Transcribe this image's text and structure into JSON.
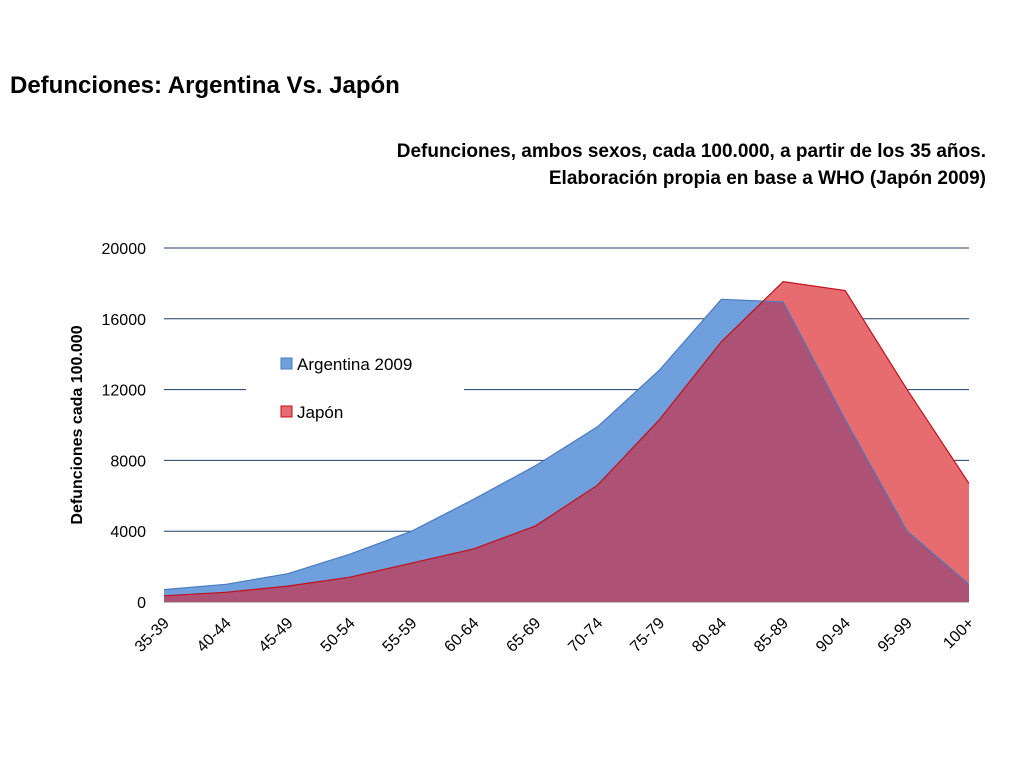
{
  "page": {
    "title": "Defunciones: Argentina Vs. Japón",
    "subtitle_line1": "Defunciones, ambos sexos, cada 100.000, a partir de los 35 años.",
    "subtitle_line2": "Elaboración propia en base a WHO (Japón 2009)"
  },
  "chart_data": {
    "type": "area",
    "categories": [
      "35-39",
      "40-44",
      "45-49",
      "50-54",
      "55-59",
      "60-64",
      "65-69",
      "70-74",
      "75-79",
      "80-84",
      "85-89",
      "90-94",
      "95-99",
      "100+"
    ],
    "series": [
      {
        "name": "Argentina 2009",
        "color": "#6f9fdc",
        "stroke": "#4a7bbf",
        "values": [
          700,
          1000,
          1600,
          2700,
          4000,
          5800,
          7700,
          9900,
          13100,
          17100,
          16950,
          10300,
          4000,
          1000
        ]
      },
      {
        "name": "Japón",
        "color": "#e66c70",
        "stroke": "#c0101a",
        "values": [
          350,
          550,
          900,
          1400,
          2200,
          3000,
          4300,
          6600,
          10300,
          14700,
          18100,
          17600,
          12000,
          6700
        ]
      }
    ],
    "ylabel": "Defunciones cada 100.000",
    "xlabel": "",
    "ylim": [
      0,
      20000
    ],
    "yticks": [
      0,
      4000,
      8000,
      12000,
      16000,
      20000
    ],
    "grid": true,
    "legend_position": "upper-left inside plot",
    "overlap_color": "#ad5274"
  }
}
